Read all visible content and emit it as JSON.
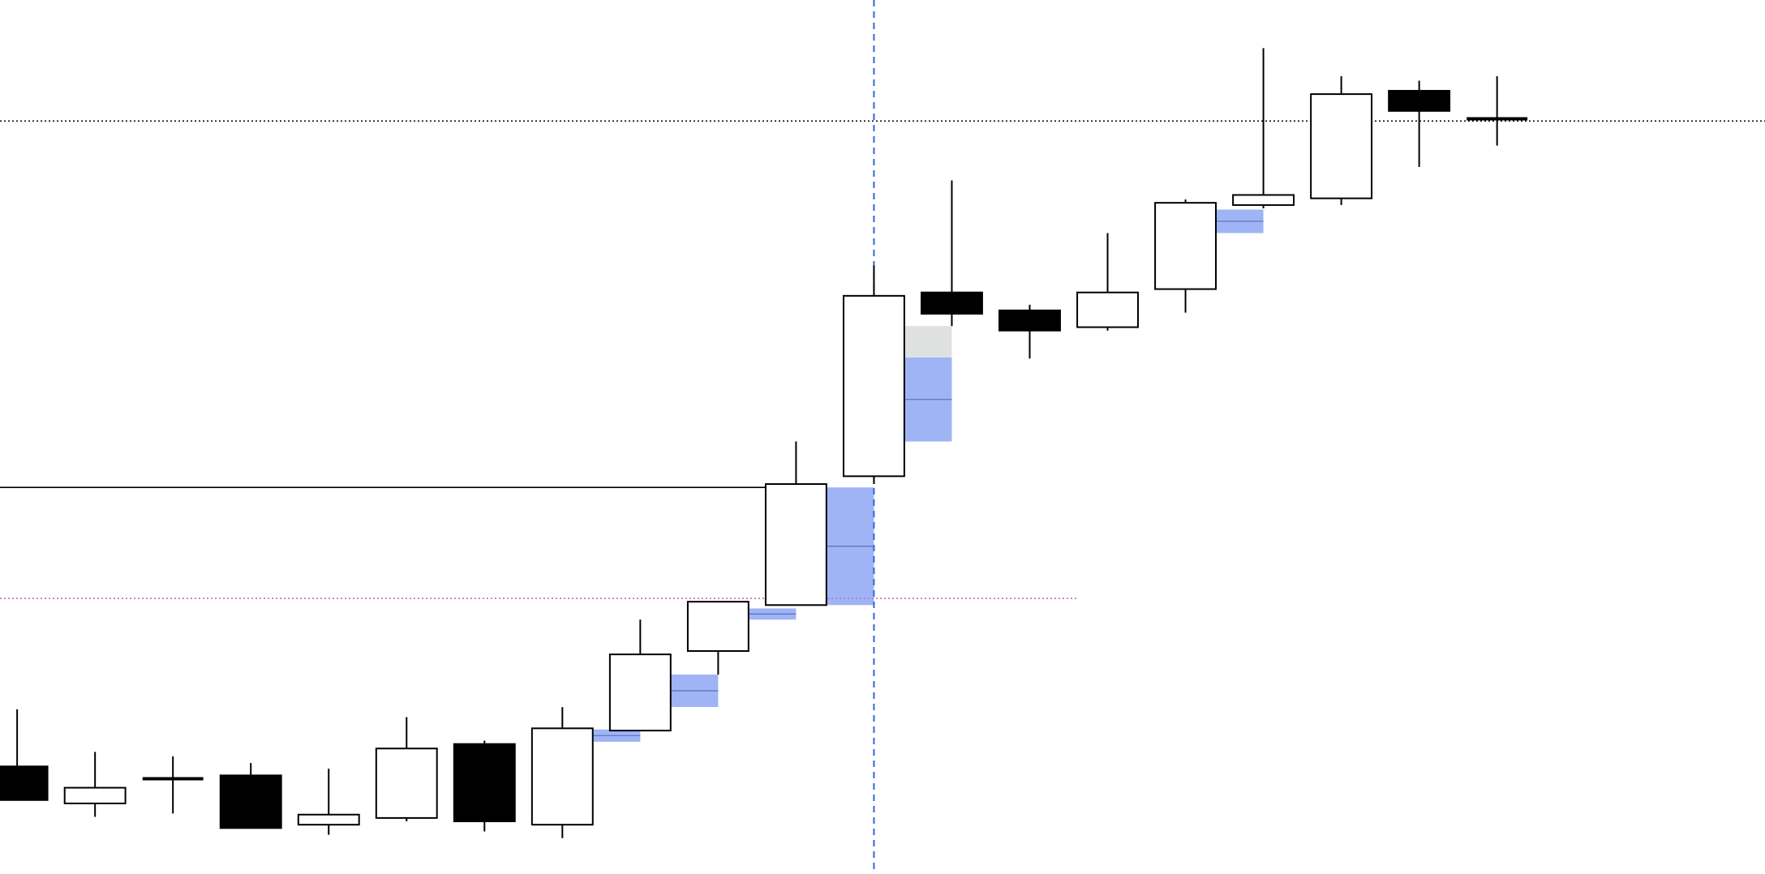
{
  "chart_data": {
    "type": "candlestick",
    "ylim": [
      0,
      780
    ],
    "xlim": [
      -0.22,
      22.44
    ],
    "candles": [
      {
        "open": 96,
        "high": 147,
        "low": 66,
        "close": 66
      },
      {
        "open": 63,
        "high": 109,
        "low": 51,
        "close": 77
      },
      {
        "open": 85,
        "high": 105,
        "low": 54,
        "close": 85
      },
      {
        "open": 88,
        "high": 99,
        "low": 41,
        "close": 41
      },
      {
        "open": 44,
        "high": 94,
        "low": 35,
        "close": 53
      },
      {
        "open": 50,
        "high": 140,
        "low": 47,
        "close": 112
      },
      {
        "open": 116,
        "high": 119,
        "low": 38,
        "close": 47
      },
      {
        "open": 44,
        "high": 149,
        "low": 32,
        "close": 130
      },
      {
        "open": 128,
        "high": 227,
        "low": 128,
        "close": 196
      },
      {
        "open": 199,
        "high": 243,
        "low": 178,
        "close": 243
      },
      {
        "open": 240,
        "high": 386,
        "low": 240,
        "close": 348
      },
      {
        "open": 355,
        "high": 543,
        "low": 348,
        "close": 516
      },
      {
        "open": 519,
        "high": 619,
        "low": 489,
        "close": 500
      },
      {
        "open": 503,
        "high": 508,
        "low": 460,
        "close": 485
      },
      {
        "open": 488,
        "high": 572,
        "low": 485,
        "close": 519
      },
      {
        "open": 522,
        "high": 602,
        "low": 501,
        "close": 599
      },
      {
        "open": 597,
        "high": 737,
        "low": 594,
        "close": 606
      },
      {
        "open": 603,
        "high": 712,
        "low": 597,
        "close": 696
      },
      {
        "open": 699,
        "high": 708,
        "low": 631,
        "close": 681
      },
      {
        "open": 674,
        "high": 712,
        "low": 650,
        "close": 674
      }
    ],
    "up_color": "#ffffff",
    "down_color": "#000000",
    "zones": [
      {
        "candle": 8,
        "low": 118,
        "high": 129,
        "color": "#9fb4f5"
      },
      {
        "candle": 9,
        "low": 149,
        "high": 178,
        "color": "#9fb4f5"
      },
      {
        "candle": 10,
        "low": 227,
        "high": 237,
        "color": "#9fb4f5"
      },
      {
        "candle": 11,
        "low": 240,
        "high": 345,
        "color": "#9fb4f5"
      },
      {
        "candle": 12,
        "low": 386,
        "high": 461,
        "color": "#9fb4f5"
      },
      {
        "candle": 12,
        "low": 461,
        "high": 489,
        "color": "#dfe1e0"
      },
      {
        "candle": 16,
        "low": 572,
        "high": 593,
        "color": "#9fb4f5"
      }
    ],
    "levels": [
      {
        "value": 672,
        "color": "#000000",
        "dash": "dotted"
      },
      {
        "value": 345,
        "color": "#000000",
        "end_candle": 10
      },
      {
        "value": 246,
        "color": "#c070c0",
        "dash": "dotted",
        "end_candle": 14
      }
    ],
    "cursor_candle": 11,
    "cursor_color": "#3366dd"
  }
}
